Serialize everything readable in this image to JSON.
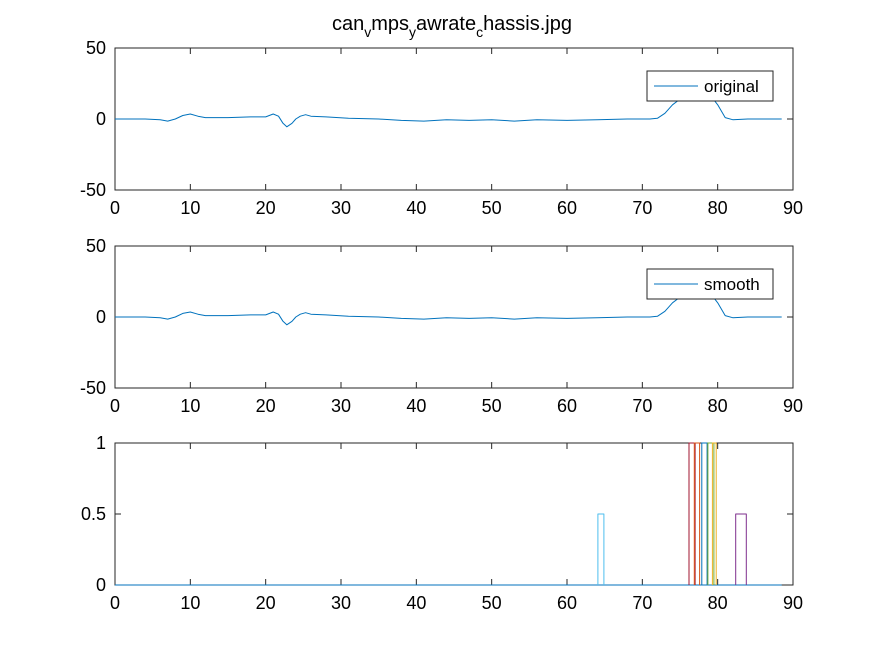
{
  "figure": {
    "title": {
      "parts": [
        {
          "text": "can",
          "sub": false
        },
        {
          "text": "v",
          "sub": true
        },
        {
          "text": "mps",
          "sub": false
        },
        {
          "text": "y",
          "sub": true
        },
        {
          "text": "awrate",
          "sub": false
        },
        {
          "text": "c",
          "sub": true
        },
        {
          "text": "hassis.jpg",
          "sub": false
        }
      ]
    }
  },
  "chart_data": [
    {
      "type": "line",
      "panel": "top",
      "xlim": [
        0,
        90
      ],
      "ylim": [
        -50,
        50
      ],
      "xticks": [
        "0",
        "10",
        "20",
        "30",
        "40",
        "50",
        "60",
        "70",
        "80",
        "90"
      ],
      "yticks": [
        "-50",
        "0",
        "50"
      ],
      "legend": {
        "entries": [
          "original"
        ],
        "position": "top-right"
      },
      "series": [
        {
          "name": "original",
          "color": "#0072BD",
          "x": [
            0,
            4,
            6,
            7,
            8,
            9,
            10,
            11,
            12,
            15,
            18,
            20,
            21,
            21.7,
            22.3,
            22.8,
            23.5,
            24,
            24.6,
            25.3,
            26,
            28,
            31,
            35,
            38,
            41,
            44,
            47,
            50,
            53,
            56,
            60,
            64,
            68,
            71,
            72,
            73,
            74,
            75,
            76,
            77,
            78,
            79,
            80,
            81,
            82,
            84,
            86,
            88.5
          ],
          "y": [
            0,
            0,
            -0.5,
            -1.5,
            0,
            2.5,
            3.5,
            2,
            1,
            1,
            1.5,
            1.5,
            3.5,
            2,
            -3,
            -5.5,
            -3,
            0,
            2,
            3,
            2,
            1.5,
            0.5,
            0,
            -1,
            -1.5,
            -0.5,
            -1,
            -0.5,
            -1.5,
            -0.5,
            -1,
            -0.5,
            0,
            0,
            0.5,
            4,
            10,
            14,
            17,
            18,
            17,
            17,
            10,
            1,
            -0.5,
            0,
            0,
            0
          ]
        }
      ]
    },
    {
      "type": "line",
      "panel": "middle",
      "xlim": [
        0,
        90
      ],
      "ylim": [
        -50,
        50
      ],
      "xticks": [
        "0",
        "10",
        "20",
        "30",
        "40",
        "50",
        "60",
        "70",
        "80",
        "90"
      ],
      "yticks": [
        "-50",
        "0",
        "50"
      ],
      "legend": {
        "entries": [
          "smooth"
        ],
        "position": "top-right"
      },
      "series": [
        {
          "name": "smooth",
          "color": "#0072BD",
          "x": [
            0,
            4,
            6,
            7,
            8,
            9,
            10,
            11,
            12,
            15,
            18,
            20,
            21,
            21.7,
            22.3,
            22.8,
            23.5,
            24,
            24.6,
            25.3,
            26,
            28,
            31,
            35,
            38,
            41,
            44,
            47,
            50,
            53,
            56,
            60,
            64,
            68,
            71,
            72,
            73,
            74,
            75,
            76,
            77,
            78,
            79,
            80,
            81,
            82,
            84,
            86,
            88.5
          ],
          "y": [
            0,
            0,
            -0.5,
            -1.5,
            0,
            2.5,
            3.5,
            2,
            1,
            1,
            1.5,
            1.5,
            3.5,
            2,
            -3,
            -5.5,
            -3,
            0,
            2,
            3,
            2,
            1.5,
            0.5,
            0,
            -1,
            -1.5,
            -0.5,
            -1,
            -0.5,
            -1.5,
            -0.5,
            -1,
            -0.5,
            0,
            0,
            0.5,
            4,
            10,
            14,
            17,
            18,
            17,
            17,
            10,
            1,
            -0.5,
            0,
            0,
            0
          ]
        }
      ]
    },
    {
      "type": "line",
      "panel": "bottom",
      "xlim": [
        0,
        90
      ],
      "ylim": [
        0,
        1
      ],
      "xticks": [
        "0",
        "10",
        "20",
        "30",
        "40",
        "50",
        "60",
        "70",
        "80",
        "90"
      ],
      "yticks": [
        "0",
        "0.5",
        "1"
      ],
      "series": [
        {
          "color": "#0072BD",
          "x": [
            0,
            88.5
          ],
          "y": [
            0,
            0
          ]
        },
        {
          "color": "#4DBEEE",
          "x": [
            64.1,
            64.1,
            64.9,
            64.9
          ],
          "y": [
            0,
            0.5,
            0.5,
            0
          ]
        },
        {
          "color": "#A2142F",
          "x": [
            76.2,
            76.2,
            77.0,
            77.0
          ],
          "y": [
            0,
            1,
            1,
            0
          ]
        },
        {
          "color": "#D95319",
          "x": [
            76.9,
            76.9,
            77.6,
            77.6
          ],
          "y": [
            0,
            1,
            1,
            0
          ]
        },
        {
          "color": "#0072BD",
          "x": [
            77.9,
            77.9,
            78.6,
            78.6
          ],
          "y": [
            0,
            1,
            1,
            0
          ]
        },
        {
          "color": "#77AC30",
          "x": [
            78.7,
            78.7,
            79.5,
            79.5
          ],
          "y": [
            0,
            1,
            1,
            0
          ]
        },
        {
          "color": "#EDB120",
          "x": [
            79.3,
            79.3,
            79.8,
            79.8
          ],
          "y": [
            0,
            1,
            1,
            0
          ]
        },
        {
          "color": "#7E2F8E",
          "x": [
            82.4,
            82.4,
            83.8,
            83.8
          ],
          "y": [
            0,
            0.5,
            0.5,
            0
          ]
        }
      ]
    }
  ]
}
